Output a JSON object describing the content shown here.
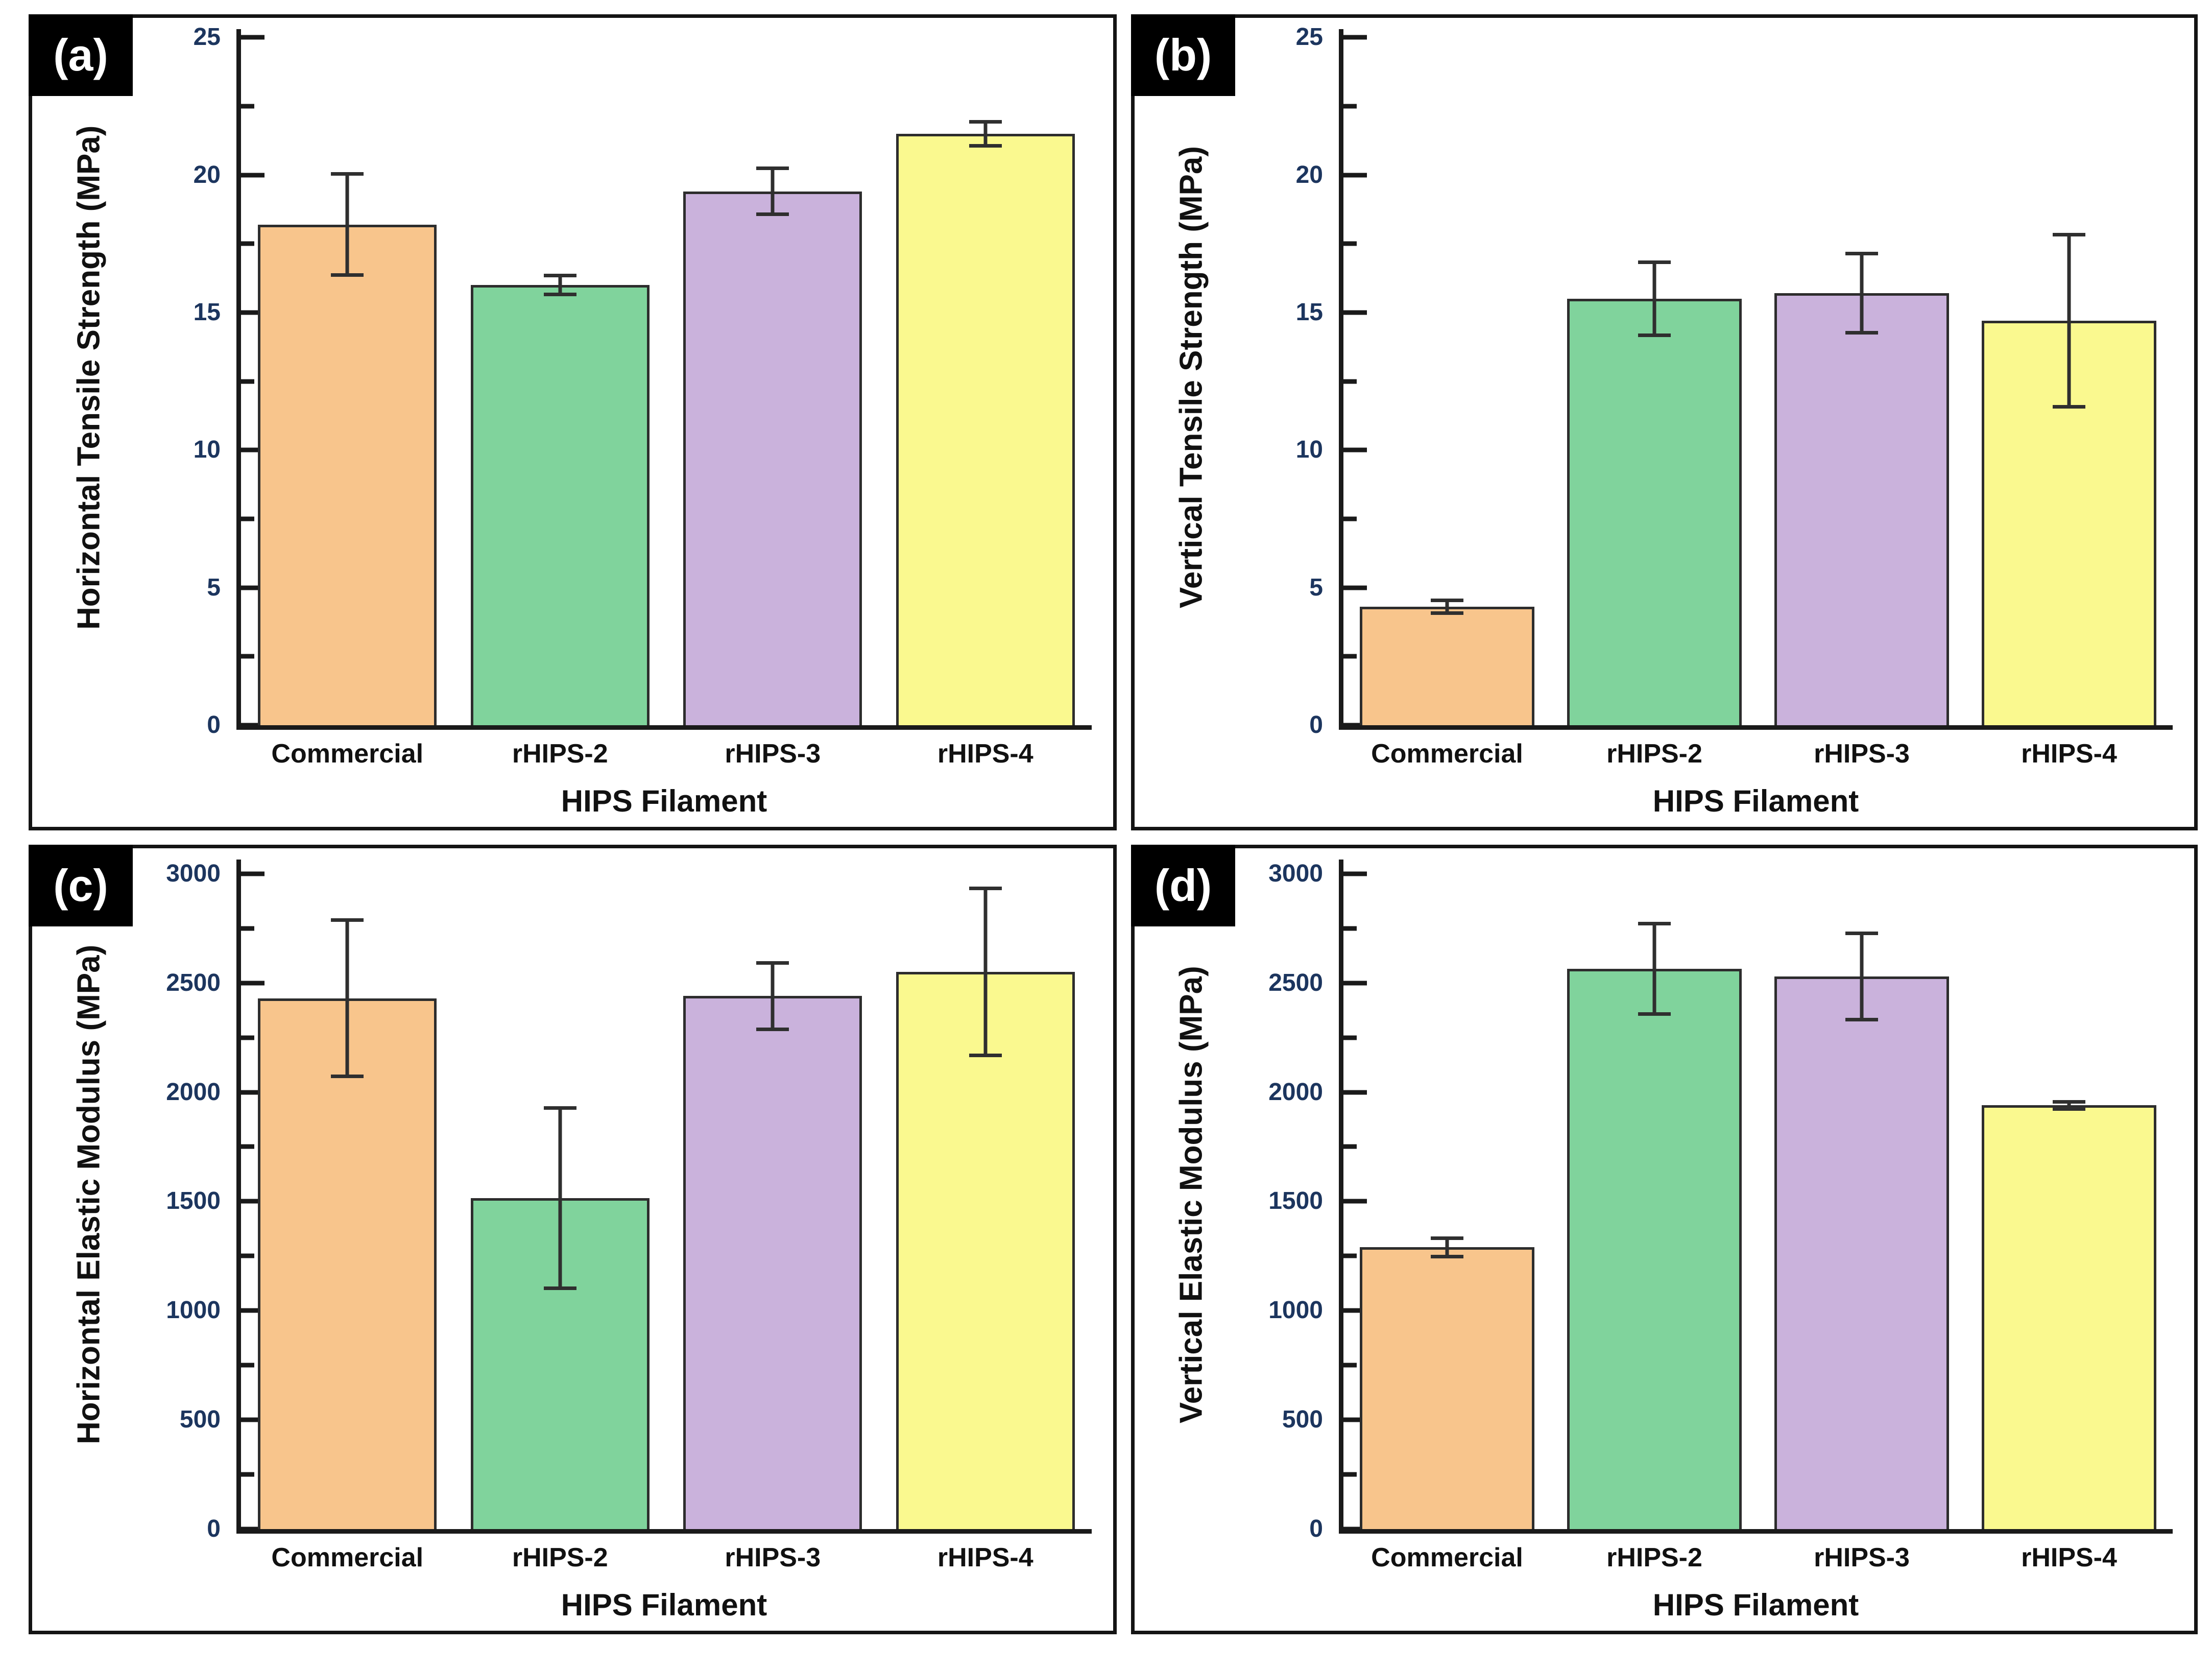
{
  "figure": {
    "description": "Four-panel bar chart figure comparing HIPS filament mechanical properties",
    "panel_letters": [
      "(a)",
      "(b)",
      "(c)",
      "(d)"
    ]
  },
  "colors": {
    "bar_fills": [
      "#F8C58C",
      "#80D39C",
      "#CAB2DC",
      "#FAF98F"
    ],
    "bar_edge": "#2D2D2D",
    "error_bar": "#2F2F2F",
    "axis_line": "#1A1A1A",
    "tick_label": "#1C355E",
    "panel_letter_bg": "#000000",
    "panel_letter_fg": "#FFFFFF",
    "text": "#111111",
    "background": "#FFFFFF"
  },
  "chart_data": [
    {
      "type": "bar",
      "panel_label": "(a)",
      "title": "",
      "xlabel": "HIPS Filament",
      "ylabel": "Horizontal Tensile Strength (MPa)",
      "categories": [
        "Commercial",
        "rHIPS-2",
        "rHIPS-3",
        "rHIPS-4"
      ],
      "values": [
        18.2,
        16.0,
        19.4,
        21.5
      ],
      "errors": [
        1.9,
        0.4,
        0.9,
        0.5
      ],
      "ylim": [
        0,
        25
      ],
      "axis_top": 25.3,
      "yticks": [
        0,
        5,
        10,
        15,
        20,
        25
      ],
      "yminorticks": [
        2.5,
        7.5,
        12.5,
        17.5,
        22.5
      ],
      "grid": false,
      "legend": null
    },
    {
      "type": "bar",
      "panel_label": "(b)",
      "title": "",
      "xlabel": "HIPS Filament",
      "ylabel": "Vertical Tensile Strength (MPa)",
      "categories": [
        "Commercial",
        "rHIPS-2",
        "rHIPS-3",
        "rHIPS-4"
      ],
      "values": [
        4.3,
        15.5,
        15.7,
        14.7
      ],
      "errors": [
        0.3,
        1.4,
        1.5,
        3.2
      ],
      "ylim": [
        0,
        25
      ],
      "axis_top": 25.3,
      "yticks": [
        0,
        5,
        10,
        15,
        20,
        25
      ],
      "yminorticks": [
        2.5,
        7.5,
        12.5,
        17.5,
        22.5
      ],
      "grid": false,
      "legend": null
    },
    {
      "type": "bar",
      "panel_label": "(c)",
      "title": "",
      "xlabel": "HIPS Filament",
      "ylabel": "Horizontal Elastic Modulus (MPa)",
      "categories": [
        "Commercial",
        "rHIPS-2",
        "rHIPS-3",
        "rHIPS-4"
      ],
      "values": [
        2430,
        1515,
        2440,
        2550
      ],
      "errors": [
        365,
        420,
        160,
        390
      ],
      "ylim": [
        0,
        3000
      ],
      "axis_top": 3065,
      "yticks": [
        0,
        500,
        1000,
        1500,
        2000,
        2500,
        3000
      ],
      "yminorticks": [
        250,
        750,
        1250,
        1750,
        2250,
        2750
      ],
      "grid": false,
      "legend": null
    },
    {
      "type": "bar",
      "panel_label": "(d)",
      "title": "",
      "xlabel": "HIPS Filament",
      "ylabel": "Vertical Elastic Modulus (MPa)",
      "categories": [
        "Commercial",
        "rHIPS-2",
        "rHIPS-3",
        "rHIPS-4"
      ],
      "values": [
        1290,
        2565,
        2530,
        1940
      ],
      "errors": [
        50,
        215,
        205,
        25
      ],
      "ylim": [
        0,
        3000
      ],
      "axis_top": 3065,
      "yticks": [
        0,
        500,
        1000,
        1500,
        2000,
        2500,
        3000
      ],
      "yminorticks": [
        250,
        750,
        1250,
        1750,
        2250,
        2750
      ],
      "grid": false,
      "legend": null
    }
  ]
}
